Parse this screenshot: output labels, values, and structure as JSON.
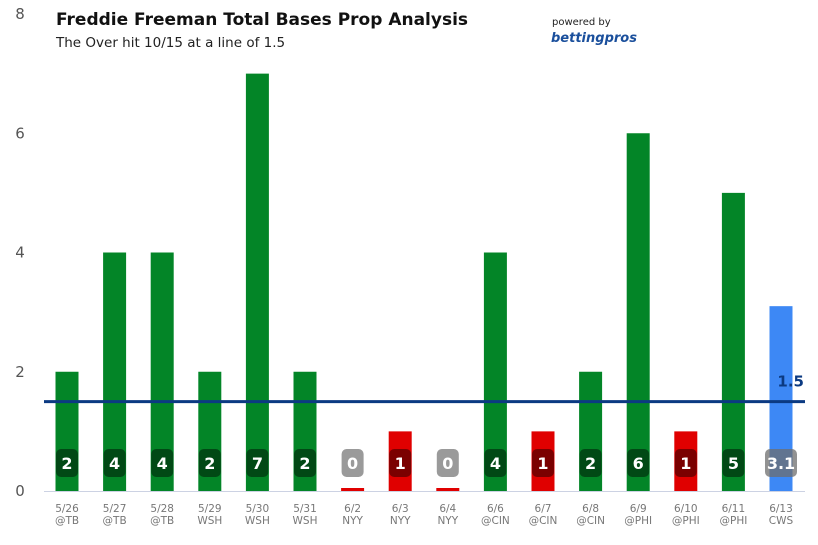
{
  "chart_data": {
    "type": "bar",
    "title": "Freddie Freeman Total Bases Prop Analysis",
    "subtitle": "The Over hit 10/15 at a line of 1.5",
    "powered_by": "powered by",
    "brand": "bettingpros",
    "categories": [
      [
        "5/26",
        "@TB"
      ],
      [
        "5/27",
        "@TB"
      ],
      [
        "5/28",
        "@TB"
      ],
      [
        "5/29",
        "WSH"
      ],
      [
        "5/30",
        "WSH"
      ],
      [
        "5/31",
        "WSH"
      ],
      [
        "6/2",
        "NYY"
      ],
      [
        "6/3",
        "NYY"
      ],
      [
        "6/4",
        "NYY"
      ],
      [
        "6/6",
        "@CIN"
      ],
      [
        "6/7",
        "@CIN"
      ],
      [
        "6/8",
        "@CIN"
      ],
      [
        "6/9",
        "@PHI"
      ],
      [
        "6/10",
        "@PHI"
      ],
      [
        "6/11",
        "@PHI"
      ],
      [
        "6/13",
        "CWS"
      ]
    ],
    "values": [
      2,
      4,
      4,
      2,
      7,
      2,
      0,
      1,
      0,
      4,
      1,
      2,
      6,
      1,
      5,
      3.1
    ],
    "labels": [
      "2",
      "4",
      "4",
      "2",
      "7",
      "2",
      "0",
      "1",
      "0",
      "4",
      "1",
      "2",
      "6",
      "1",
      "5",
      "3.1"
    ],
    "outcome": [
      "over",
      "over",
      "over",
      "over",
      "over",
      "over",
      "under",
      "under",
      "under",
      "over",
      "under",
      "over",
      "over",
      "under",
      "over",
      "projection"
    ],
    "line": {
      "value": 1.5,
      "label": "1.5"
    },
    "ylim": [
      0,
      8
    ],
    "yticks": [
      "0",
      "2",
      "4",
      "6",
      "8"
    ],
    "grid": false,
    "colors": {
      "over": "#038527",
      "under": "#e00000",
      "projection": "#3d88f5",
      "line": "#0b3a82"
    }
  }
}
